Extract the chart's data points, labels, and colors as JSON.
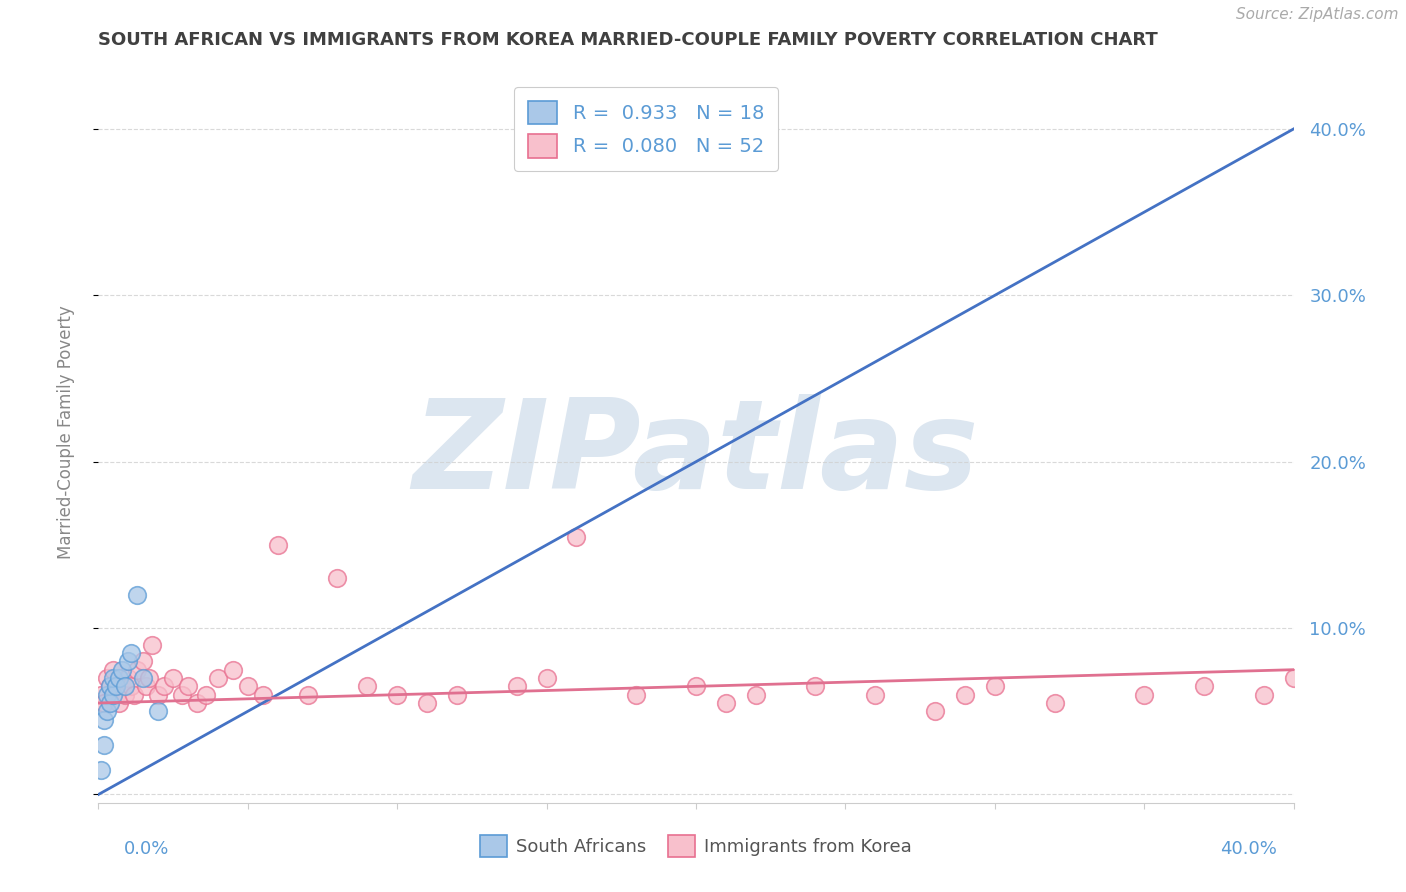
{
  "title": "SOUTH AFRICAN VS IMMIGRANTS FROM KOREA MARRIED-COUPLE FAMILY POVERTY CORRELATION CHART",
  "source": "Source: ZipAtlas.com",
  "ylabel": "Married-Couple Family Poverty",
  "xlim": [
    0.0,
    0.4
  ],
  "ylim": [
    -0.005,
    0.44
  ],
  "south_africans_R": 0.933,
  "south_africans_N": 18,
  "korea_R": 0.08,
  "korea_N": 52,
  "sa_color": "#aac8e8",
  "sa_edge_color": "#5b9bd5",
  "korea_color": "#f8c0cc",
  "korea_edge_color": "#e87090",
  "sa_line_color": "#4472c4",
  "korea_line_color": "#e07090",
  "background_color": "#ffffff",
  "watermark": "ZIPatlas",
  "watermark_color": "#dce6f0",
  "grid_color": "#d0d0d0",
  "title_color": "#404040",
  "axis_label_color": "#5b9bd5",
  "legend_text_color": "#5b9bd5",
  "sa_line_x0": 0.0,
  "sa_line_y0": 0.0,
  "sa_line_x1": 0.4,
  "sa_line_y1": 0.4,
  "korea_line_x0": 0.0,
  "korea_line_y0": 0.055,
  "korea_line_x1": 0.4,
  "korea_line_y1": 0.075,
  "sa_x": [
    0.001,
    0.002,
    0.002,
    0.003,
    0.003,
    0.004,
    0.004,
    0.005,
    0.005,
    0.006,
    0.007,
    0.008,
    0.009,
    0.01,
    0.011,
    0.013,
    0.015,
    0.02
  ],
  "sa_y": [
    0.015,
    0.03,
    0.045,
    0.05,
    0.06,
    0.055,
    0.065,
    0.06,
    0.07,
    0.065,
    0.07,
    0.075,
    0.065,
    0.08,
    0.085,
    0.12,
    0.07,
    0.05
  ],
  "korea_x": [
    0.001,
    0.002,
    0.003,
    0.004,
    0.005,
    0.006,
    0.007,
    0.008,
    0.009,
    0.01,
    0.011,
    0.012,
    0.013,
    0.015,
    0.016,
    0.017,
    0.018,
    0.02,
    0.022,
    0.025,
    0.028,
    0.03,
    0.033,
    0.036,
    0.04,
    0.045,
    0.05,
    0.055,
    0.06,
    0.07,
    0.08,
    0.09,
    0.1,
    0.11,
    0.12,
    0.14,
    0.15,
    0.16,
    0.18,
    0.2,
    0.21,
    0.22,
    0.24,
    0.26,
    0.28,
    0.29,
    0.3,
    0.32,
    0.35,
    0.37,
    0.39,
    0.4
  ],
  "korea_y": [
    0.06,
    0.055,
    0.07,
    0.065,
    0.075,
    0.06,
    0.055,
    0.065,
    0.06,
    0.07,
    0.065,
    0.06,
    0.075,
    0.08,
    0.065,
    0.07,
    0.09,
    0.06,
    0.065,
    0.07,
    0.06,
    0.065,
    0.055,
    0.06,
    0.07,
    0.075,
    0.065,
    0.06,
    0.15,
    0.06,
    0.13,
    0.065,
    0.06,
    0.055,
    0.06,
    0.065,
    0.07,
    0.155,
    0.06,
    0.065,
    0.055,
    0.06,
    0.065,
    0.06,
    0.05,
    0.06,
    0.065,
    0.055,
    0.06,
    0.065,
    0.06,
    0.07
  ]
}
